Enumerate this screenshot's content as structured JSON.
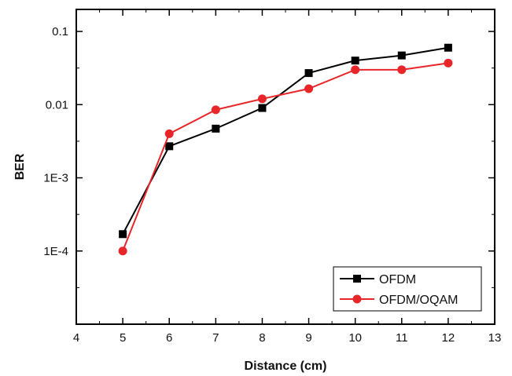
{
  "chart_data": {
    "type": "line",
    "xlabel": "Distance (cm)",
    "ylabel": "BER",
    "xlim": [
      4,
      13
    ],
    "ylim": [
      1e-05,
      0.2
    ],
    "yscale": "log",
    "x_ticks": [
      4,
      5,
      6,
      7,
      8,
      9,
      10,
      11,
      12,
      13
    ],
    "x_tick_labels": [
      "4",
      "5",
      "6",
      "7",
      "8",
      "9",
      "10",
      "11",
      "12",
      "13"
    ],
    "y_ticks": [
      0.0001,
      0.001,
      0.01,
      0.1
    ],
    "y_tick_labels": [
      "1E-4",
      "1E-3",
      "0.01",
      "0.1"
    ],
    "grid": false,
    "legend_position": "bottom-right",
    "series": [
      {
        "name": "OFDM",
        "color": "#000000",
        "marker": "square",
        "x": [
          5,
          6,
          7,
          8,
          9,
          10,
          11,
          12
        ],
        "y": [
          0.00017,
          0.0027,
          0.0047,
          0.009,
          0.027,
          0.04,
          0.047,
          0.06
        ]
      },
      {
        "name": "OFDM/OQAM",
        "color": "#e8262a",
        "marker": "circle",
        "x": [
          5,
          6,
          7,
          8,
          9,
          10,
          11,
          12
        ],
        "y": [
          0.0001,
          0.004,
          0.0085,
          0.012,
          0.0165,
          0.03,
          0.03,
          0.037
        ]
      }
    ]
  }
}
